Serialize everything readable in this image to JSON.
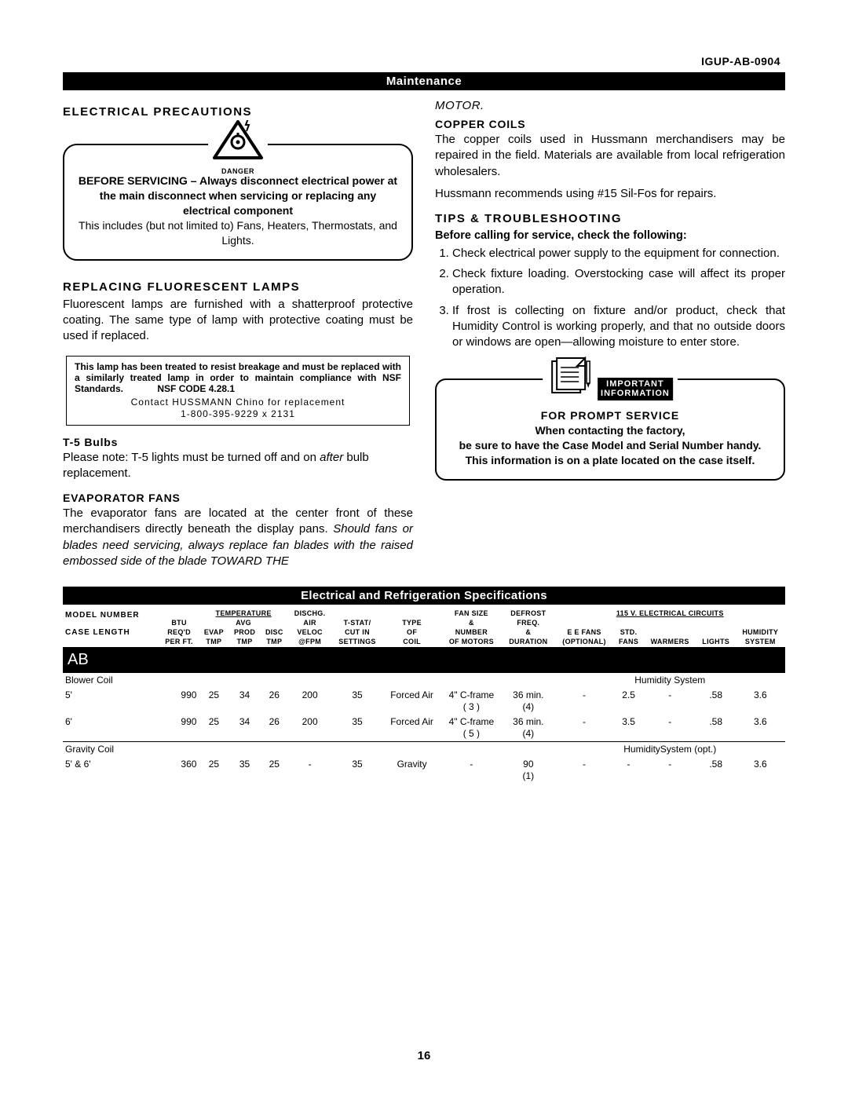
{
  "doc_id": "IGUP-AB-0904",
  "section_bar": "Maintenance",
  "left": {
    "precautions_heading": "ELECTRICAL PRECAUTIONS",
    "danger_label": "DANGER",
    "danger_bold": "BEFORE SERVICING – Always disconnect electrical power at the main disconnect when servicing or replacing any electrical component",
    "danger_plain": "This includes (but not limited to) Fans, Heaters, Thermostats, and Lights.",
    "lamps_heading": "REPLACING FLUORESCENT LAMPS",
    "lamps_body": "Fluorescent lamps are furnished with a shatterproof protective coating. The same type of lamp with protective coating must be used if replaced.",
    "lamp_box_bold": "This lamp has been treated to resist breakage and must be replaced with a similarly treated lamp in order to maintain compliance with NSF Standards.",
    "lamp_box_nsf": "NSF CODE 4.28.1",
    "lamp_box_contact1": "Contact HUSSMANN Chino for replacement",
    "lamp_box_contact2": "1-800-395-9229  x  2131",
    "t5_heading": "T-5 Bulbs",
    "t5_body_a": "Please note: T-5 lights must be turned off and on ",
    "t5_body_em": "after",
    "t5_body_b": " bulb replacement.",
    "evap_heading": "EVAPORATOR FANS",
    "evap_body": "The evaporator fans are located at the center front of these merchandisers directly beneath the display pans. ",
    "evap_italic": "Should fans or blades need servicing, always replace fan blades with the raised embossed side of the blade TOWARD THE"
  },
  "right": {
    "motor_heading": "MOTOR.",
    "copper_heading": "COPPER COILS",
    "copper_body1": "The copper coils used in Hussmann merchandisers may be repaired in the field. Materials are available from local refrigeration wholesalers.",
    "copper_body2": "Hussmann recommends using #15 Sil-Fos for repairs.",
    "tips_heading": "TIPS & TROUBLESHOOTING",
    "tips_sub": "Before calling for service, check the following:",
    "tips": [
      "Check electrical power supply to the equipment for connection.",
      "Check fixture loading. Overstocking case will affect its proper operation.",
      "If frost is collecting on fixture and/or product, check that Humidity Control is working properly, and that no outside doors or windows are open—allowing moisture to enter store."
    ],
    "info_label1": "IMPORTANT",
    "info_label2": "INFORMATION",
    "info_prompt": "FOR PROMPT SERVICE",
    "info_body": "When contacting the factory,\nbe sure to have the Case Model and Serial Number handy. This information is on a plate located on the case itself."
  },
  "spec_bar": "Electrical and Refrigeration Specifications",
  "spec": {
    "headers": {
      "model": "Model Number",
      "case": "Case Length",
      "btu1": "BTU",
      "btu2": "Req'd",
      "btu3": "per ft.",
      "temp_group": "Temperature",
      "avg": "Avg",
      "evap": "Evap",
      "prod": "Prod",
      "disc": "Disc",
      "tmp": "Tmp",
      "dischg": "Dischg.",
      "air": "Air",
      "veloc": "Veloc",
      "fpm": "@FPM",
      "tstat": "T-Stat/",
      "cutin": "Cut In",
      "settings": "Settings",
      "type": "Type",
      "of": "of",
      "coil": "Coil",
      "fan": "Fan Size",
      "amp": "&",
      "num": "Number",
      "ofm": "of Motors",
      "def": "Defrost",
      "freq": "Freq.",
      "dur": "Duration",
      "elec": "115 V.  Electrical Circuits",
      "eef": "E E Fans",
      "opt": "(Optional)",
      "std": "Std.",
      "fans": "Fans",
      "warm": "Warmers",
      "lights": "Lights",
      "hum": "Humidity",
      "sys": "System"
    },
    "ab_label": "AB",
    "rows": [
      {
        "section": "Blower Coil",
        "note": "Humidity System",
        "label": "5'",
        "btu": "990",
        "evap": "25",
        "prod": "34",
        "disc": "26",
        "fpm": "200",
        "tstat": "35",
        "type": "Forced Air",
        "fan": "4\" C-frame\n( 3 )",
        "def": "36 min.\n(4)",
        "eef": "-",
        "std": "2.5",
        "warm": "-",
        "lights": ".58",
        "hum": "3.6"
      },
      {
        "label": "6'",
        "btu": "990",
        "evap": "25",
        "prod": "34",
        "disc": "26",
        "fpm": "200",
        "tstat": "35",
        "type": "Forced Air",
        "fan": "4\" C-frame\n( 5 )",
        "def": "36 min.\n(4)",
        "eef": "-",
        "std": "3.5",
        "warm": "-",
        "lights": ".58",
        "hum": "3.6"
      },
      {
        "section": "Gravity Coil",
        "note": "HumiditySystem (opt.)",
        "label": "5' & 6'",
        "btu": "360",
        "evap": "25",
        "prod": "35",
        "disc": "25",
        "fpm": "-",
        "tstat": "35",
        "type": "Gravity",
        "fan": "-",
        "def": "90\n(1)",
        "eef": "-",
        "std": "-",
        "warm": "-",
        "lights": ".58",
        "hum": "3.6"
      }
    ]
  },
  "page_number": "16",
  "colors": {
    "black": "#000000",
    "white": "#ffffff"
  }
}
